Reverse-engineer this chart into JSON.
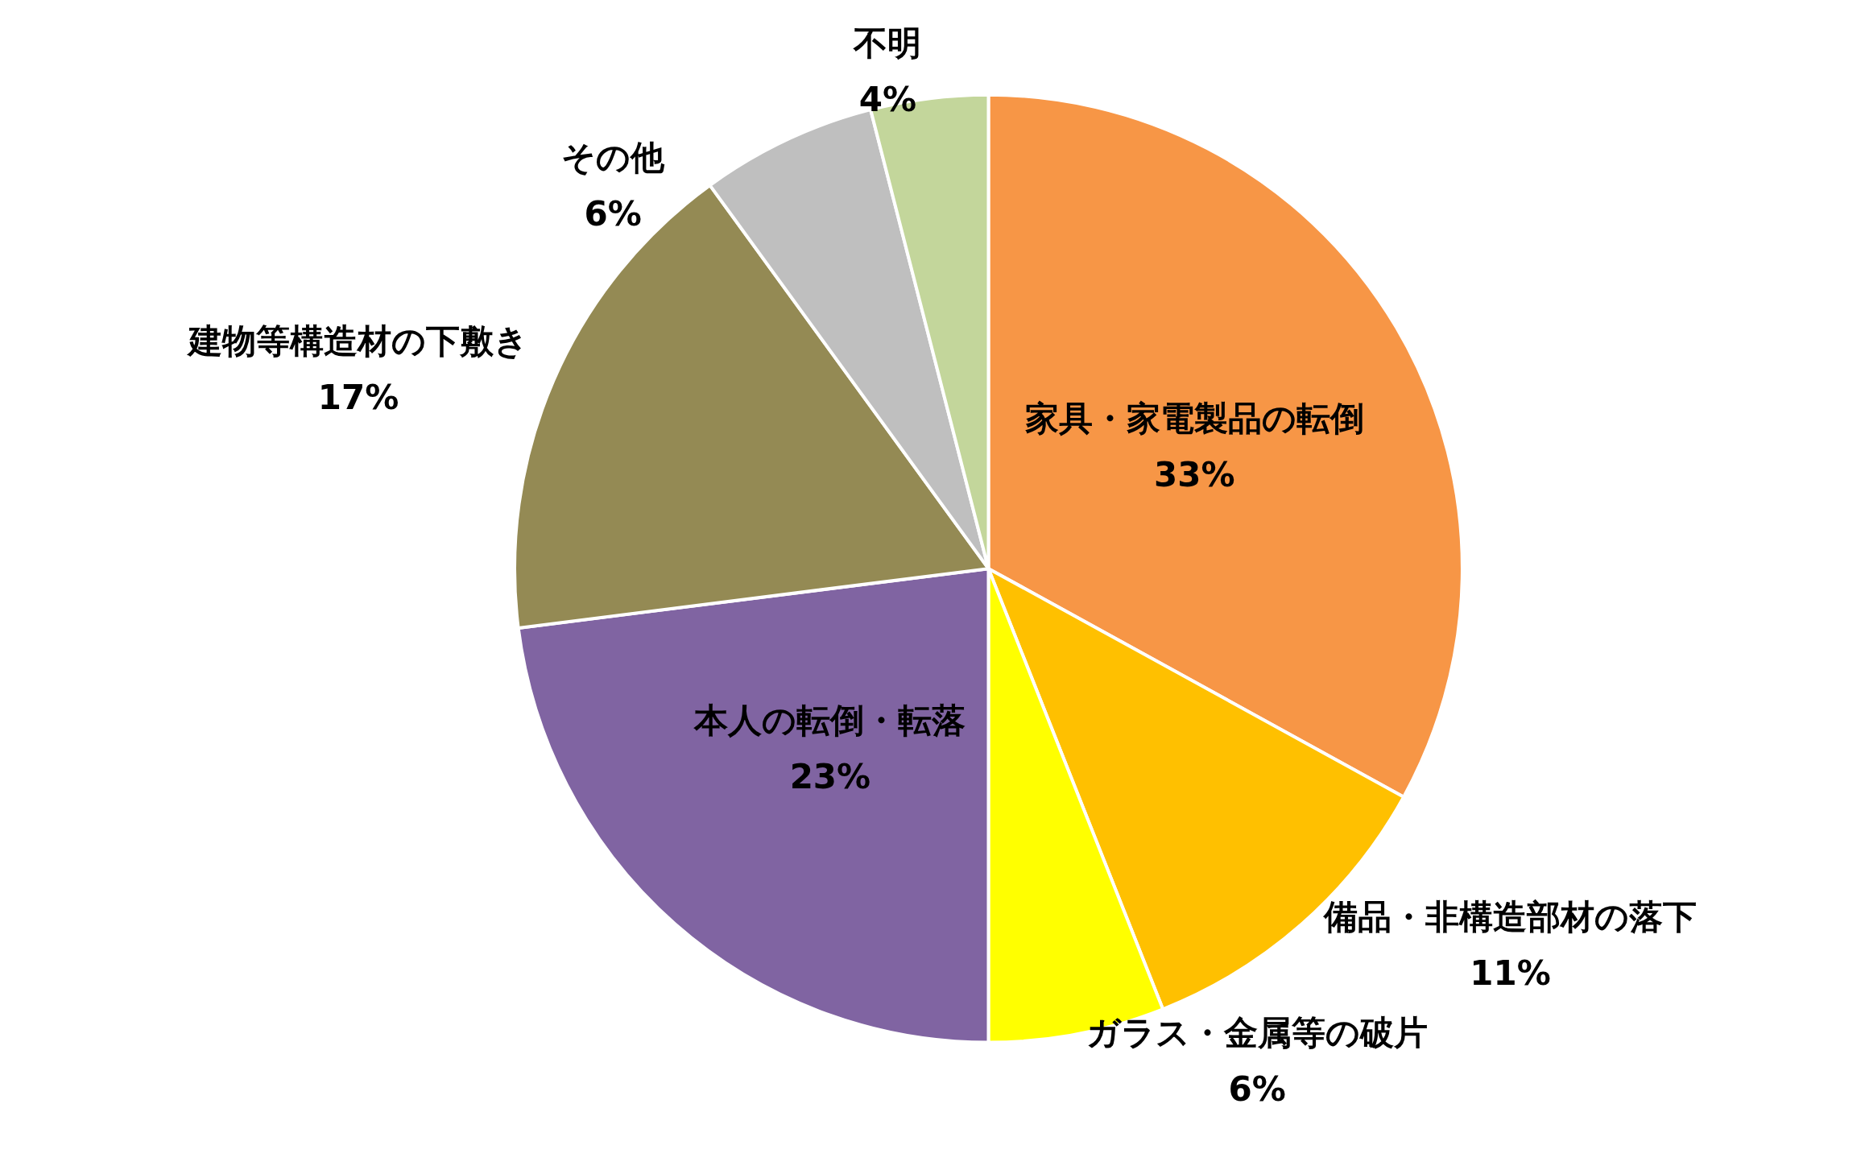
{
  "chart_data": {
    "type": "pie",
    "categories": [
      "家具・家電製品の転倒",
      "備品・非構造部材の落下",
      "ガラス・金属等の破片",
      "本人の転倒・転落",
      "建物等構造材の下敷き",
      "その他",
      "不明"
    ],
    "values": [
      33,
      11,
      6,
      23,
      17,
      6,
      4
    ],
    "value_labels": [
      "33%",
      "11%",
      "6%",
      "23%",
      "17%",
      "6%",
      "4%"
    ],
    "colors": [
      "#f79646",
      "#ffc000",
      "#ffff00",
      "#8064a2",
      "#948a54",
      "#bfbfbf",
      "#c3d69b"
    ]
  }
}
